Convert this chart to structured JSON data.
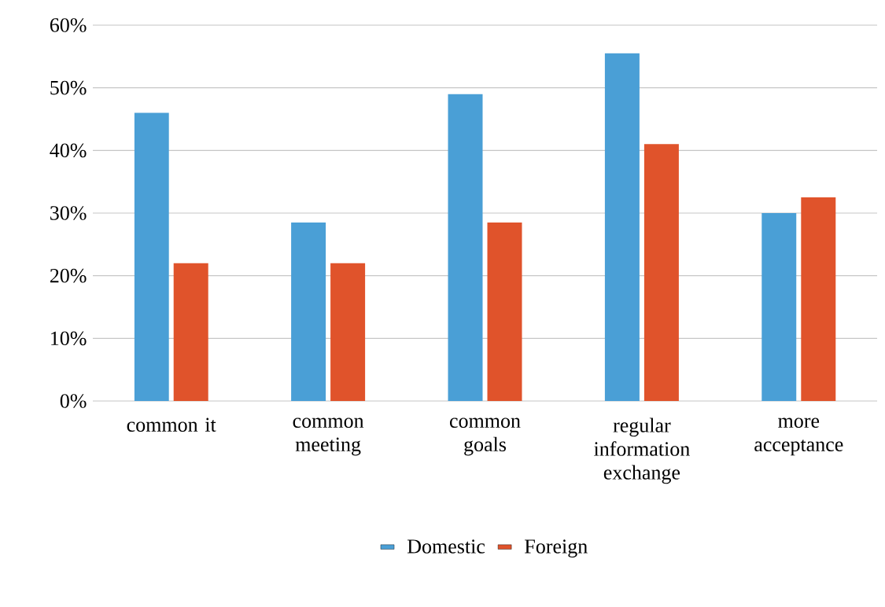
{
  "chart_data": {
    "type": "bar",
    "categories": [
      "common it",
      "common meeting",
      "common goals",
      "regular information exchange",
      "more acceptance"
    ],
    "series": [
      {
        "name": "Domestic",
        "color": "#4a9fd6",
        "values": [
          46,
          28.5,
          49,
          55.5,
          30
        ]
      },
      {
        "name": "Foreign",
        "color": "#e0532b",
        "values": [
          22,
          22,
          28.5,
          41,
          32.5
        ]
      }
    ],
    "ylim": [
      0,
      60
    ],
    "yticks": [
      {
        "value": 0,
        "label": "0%"
      },
      {
        "value": 10,
        "label": "10%"
      },
      {
        "value": 20,
        "label": "20%"
      },
      {
        "value": 30,
        "label": "30%"
      },
      {
        "value": 40,
        "label": "40%"
      },
      {
        "value": 50,
        "label": "50%"
      },
      {
        "value": 60,
        "label": "60%"
      }
    ],
    "grid": "y",
    "legend": "bottom"
  }
}
